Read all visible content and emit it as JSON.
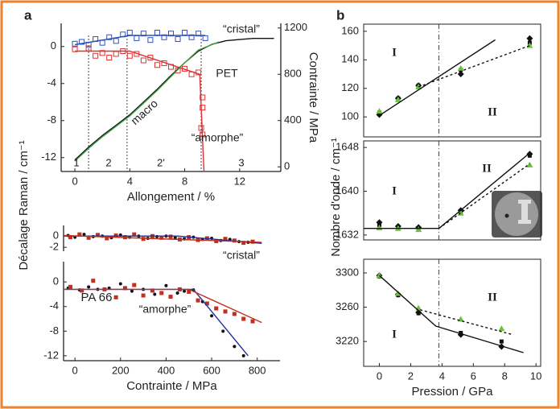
{
  "figure": {
    "panel_labels": [
      "a",
      "b"
    ],
    "ylabel_a": "Décalage Raman / cm⁻¹",
    "ylabel_b": "Nombre d'onde / cm⁻¹"
  },
  "chart_data": [
    {
      "type": "scatter",
      "xlim": [
        -1,
        15
      ],
      "xticks": [
        0,
        4,
        8,
        12
      ],
      "xlabel": "Allongement / %",
      "ylim": [
        -13.5,
        2.5
      ],
      "yticks": [
        0,
        -4,
        -8,
        -12
      ],
      "y2lim": [
        -40,
        1240
      ],
      "y2ticks": [
        0,
        400,
        800,
        1200
      ],
      "y2label": "Contrainte / MPa",
      "dividers": [
        1,
        3.8,
        9.2
      ],
      "annotations": [
        "“cristal”",
        "“amorphe”",
        "PET",
        "macro",
        "1",
        "2",
        "2'",
        "3"
      ],
      "series": [
        {
          "color": "#3050c0",
          "marker": "open-square",
          "x": [
            0,
            0.5,
            1,
            1.5,
            2,
            2.5,
            3,
            3.5,
            4,
            4.5,
            5,
            5.5,
            6,
            6.5,
            7,
            7.5,
            8,
            8.5,
            9,
            9.5
          ],
          "values": [
            0.3,
            0.5,
            0.2,
            0.8,
            0.4,
            1.0,
            0.6,
            1.3,
            1.5,
            0.9,
            1.4,
            0.7,
            1.5,
            1.0,
            1.4,
            0.8,
            1.5,
            1.0,
            1.4,
            0.9
          ]
        },
        {
          "color": "#3050c0",
          "marker": "line",
          "x": [
            0,
            4,
            9.5
          ],
          "values": [
            0.2,
            1.2,
            1.2
          ]
        },
        {
          "color": "#e03030",
          "marker": "open-square",
          "x": [
            0,
            1,
            1.5,
            2,
            2.5,
            3,
            3.5,
            4,
            4.5,
            5,
            5.5,
            6,
            6.5,
            7,
            7.5,
            8,
            8.5,
            9,
            9.3,
            9.3,
            9.2,
            9.3
          ],
          "values": [
            -0.3,
            -0.2,
            -1.0,
            -0.7,
            -1.2,
            -0.8,
            -0.5,
            -1.0,
            -0.8,
            -1.5,
            -1.2,
            -2.0,
            -1.8,
            -2.2,
            -2.6,
            -2.4,
            -3.0,
            -2.8,
            -5.5,
            -6.6,
            -8.8,
            -9.5
          ]
        },
        {
          "color": "#e03030",
          "marker": "line",
          "x": [
            0,
            4,
            9.1,
            9.4
          ],
          "values": [
            -0.5,
            -0.5,
            -3.0,
            -13.5
          ]
        },
        {
          "color": "#111111",
          "marker": "line",
          "axis": "y2",
          "x": [
            0,
            1,
            2,
            3,
            4,
            5,
            6,
            7,
            8,
            9,
            10,
            11,
            12,
            13,
            14.5
          ],
          "values": [
            60,
            170,
            270,
            360,
            450,
            560,
            670,
            790,
            900,
            1000,
            1060,
            1090,
            1100,
            1110,
            1110
          ]
        },
        {
          "color": "#40a040",
          "marker": "line",
          "axis": "y2",
          "x": [
            0,
            1,
            2,
            3,
            4,
            5,
            6,
            7,
            8,
            9,
            10.5
          ],
          "values": [
            50,
            160,
            260,
            350,
            440,
            550,
            660,
            780,
            900,
            1010,
            1080
          ]
        }
      ]
    },
    {
      "type": "scatter",
      "xlim": [
        -50,
        900
      ],
      "ylim": [
        -2.7,
        1.9
      ],
      "yticks": [
        0,
        -2
      ],
      "annotations": [
        "“cristal”"
      ],
      "series": [
        {
          "color": "#111111",
          "marker": "dot",
          "x": [
            -30,
            0,
            40,
            80,
            120,
            160,
            200,
            240,
            280,
            320,
            360,
            400,
            440,
            480,
            520,
            560,
            600,
            640,
            680,
            720,
            760
          ],
          "values": [
            0.1,
            -0.2,
            0.3,
            -0.1,
            0,
            -0.3,
            0.2,
            -0.2,
            0,
            -0.4,
            -0.1,
            0,
            -0.3,
            -0.5,
            -0.2,
            -0.6,
            -0.4,
            -0.8,
            -0.6,
            -1.0,
            -1.1
          ]
        },
        {
          "color": "#c03020",
          "marker": "square",
          "x": [
            -20,
            20,
            60,
            100,
            140,
            180,
            220,
            260,
            300,
            340,
            380,
            420,
            460,
            500,
            540,
            580,
            620,
            660,
            700,
            740,
            780
          ],
          "values": [
            -0.2,
            0.3,
            -0.3,
            0.2,
            -0.4,
            0.1,
            -0.2,
            0.3,
            -0.5,
            0,
            -0.3,
            -0.1,
            -0.6,
            -0.2,
            -0.7,
            -0.4,
            -0.9,
            -0.5,
            -0.8,
            -1.2,
            -1.0
          ]
        },
        {
          "color": "#2030a0",
          "marker": "line",
          "x": [
            -50,
            450,
            820
          ],
          "values": [
            0,
            0,
            -1.3
          ]
        },
        {
          "color": "#c03020",
          "marker": "line",
          "x": [
            -50,
            820
          ],
          "values": [
            0.1,
            -1.1
          ]
        }
      ]
    },
    {
      "type": "scatter",
      "xlim": [
        -50,
        900
      ],
      "xticks": [
        0,
        200,
        400,
        600,
        800
      ],
      "xlabel": "Contrainte / MPa",
      "ylim": [
        -12.8,
        3.3
      ],
      "yticks": [
        0,
        -4,
        -8,
        -12
      ],
      "annotations": [
        "PA 66",
        "“amorphe”"
      ],
      "series": [
        {
          "color": "#111111",
          "marker": "dot",
          "x": [
            -30,
            20,
            60,
            100,
            150,
            200,
            250,
            300,
            350,
            400,
            450,
            480,
            520,
            560,
            600,
            650,
            700,
            740
          ],
          "values": [
            -1,
            -1.3,
            -0.8,
            -1.2,
            -1,
            -0.3,
            -1.5,
            -1.2,
            -2,
            -0.6,
            -1.8,
            -1.5,
            -1.3,
            -3.2,
            -5.5,
            -8,
            -10.5,
            -12
          ]
        },
        {
          "color": "#c03020",
          "marker": "square",
          "x": [
            -20,
            30,
            80,
            130,
            180,
            220,
            260,
            300,
            340,
            380,
            420,
            460,
            500,
            540,
            580,
            620,
            660,
            700,
            740,
            780
          ],
          "values": [
            -0.8,
            -1.4,
            0.2,
            -1.2,
            -2.5,
            -1.0,
            -0.5,
            -2.2,
            -1.4,
            -1.8,
            -2.4,
            -1.2,
            -1.6,
            -3,
            -3.5,
            -4.3,
            -4.8,
            -5.2,
            -6,
            -6.4
          ]
        },
        {
          "color": "#2030a0",
          "marker": "line",
          "x": [
            -50,
            520,
            760
          ],
          "values": [
            -1.2,
            -1.2,
            -12
          ]
        },
        {
          "color": "#c03020",
          "marker": "line",
          "x": [
            -50,
            500,
            820
          ],
          "values": [
            -1.2,
            -1.2,
            -6.6
          ]
        }
      ]
    },
    {
      "type": "scatter",
      "frame": true,
      "xlim": [
        -1,
        10.3
      ],
      "ylim": [
        86,
        165
      ],
      "yticks": [
        100,
        120,
        140,
        160
      ],
      "dividers": [
        3.8
      ],
      "annotations": [
        "I",
        "II"
      ],
      "series": [
        {
          "color": "#111111",
          "marker": "diamond",
          "x": [
            0,
            1.2,
            2.5,
            5.2,
            9.6
          ],
          "values": [
            101.5,
            113,
            122,
            130,
            155
          ]
        },
        {
          "color": "#111111",
          "marker": "square",
          "x": [
            0,
            1.2,
            2.5,
            5.2,
            9.6
          ],
          "values": [
            103,
            113,
            122,
            133,
            152
          ]
        },
        {
          "color": "#6cc040",
          "marker": "triangle",
          "x": [
            0,
            1.2,
            2.5,
            5.2,
            9.6
          ],
          "values": [
            104,
            112,
            121,
            134,
            150
          ]
        },
        {
          "color": "#111111",
          "marker": "line",
          "x": [
            0,
            7.4
          ],
          "values": [
            101,
            154
          ]
        },
        {
          "color": "#111111",
          "marker": "line",
          "dash": true,
          "x": [
            2.5,
            9.6
          ],
          "values": [
            121,
            150
          ]
        }
      ]
    },
    {
      "type": "scatter",
      "frame": true,
      "xlim": [
        -1,
        10.3
      ],
      "ylim": [
        1631.1,
        1649.2
      ],
      "yticks": [
        1632,
        1640,
        1648
      ],
      "dividers": [
        3.8
      ],
      "annotations": [
        "I",
        "II"
      ],
      "series": [
        {
          "color": "#111111",
          "marker": "diamond",
          "x": [
            0,
            1.2,
            2.5,
            5.2,
            9.6
          ],
          "values": [
            1634.3,
            1633.6,
            1633.4,
            1636.5,
            1646.8
          ]
        },
        {
          "color": "#111111",
          "marker": "square",
          "x": [
            0,
            1.2,
            2.5,
            5.2,
            9.6
          ],
          "values": [
            1633.8,
            1633.4,
            1633.2,
            1636.3,
            1646.5
          ]
        },
        {
          "color": "#6cc040",
          "marker": "triangle",
          "x": [
            0,
            1.2,
            2.5,
            5.2,
            9.6
          ],
          "values": [
            1633.3,
            1633.2,
            1633,
            1636,
            1644.8
          ]
        },
        {
          "color": "#111111",
          "marker": "line",
          "x": [
            -1,
            3.8,
            9.6
          ],
          "values": [
            1633.2,
            1633.2,
            1647
          ]
        },
        {
          "color": "#111111",
          "marker": "line",
          "dash": true,
          "x": [
            3.8,
            9.6
          ],
          "values": [
            1633.2,
            1645
          ]
        }
      ]
    },
    {
      "type": "scatter",
      "frame": true,
      "xlim": [
        -1,
        10.3
      ],
      "xticks": [
        0,
        2,
        4,
        6,
        8,
        10
      ],
      "xlabel": "Pression / GPa",
      "ylim": [
        3191,
        3316
      ],
      "yticks": [
        3220,
        3260,
        3300
      ],
      "dividers": [
        3.8
      ],
      "annotations": [
        "II",
        "I"
      ],
      "series": [
        {
          "color": "#111111",
          "marker": "diamond",
          "x": [
            0,
            1.2,
            2.5,
            5.2,
            7.8
          ],
          "values": [
            3297,
            3275,
            3254,
            3228,
            3214
          ]
        },
        {
          "color": "#111111",
          "marker": "square",
          "x": [
            0,
            1.2,
            2.5,
            5.2,
            7.8
          ],
          "values": [
            3296,
            3274,
            3253,
            3230,
            3220
          ]
        },
        {
          "color": "#6cc040",
          "marker": "triangle",
          "x": [
            0,
            1.2,
            2.5,
            5.2,
            7.8
          ],
          "values": [
            3297,
            3276,
            3259,
            3246,
            3235
          ]
        },
        {
          "color": "#111111",
          "marker": "line",
          "x": [
            0,
            3.6,
            9.2
          ],
          "values": [
            3297,
            3238,
            3207
          ]
        },
        {
          "color": "#111111",
          "marker": "line",
          "dash": true,
          "x": [
            2.6,
            8.5
          ],
          "values": [
            3257,
            3228
          ]
        }
      ]
    }
  ]
}
